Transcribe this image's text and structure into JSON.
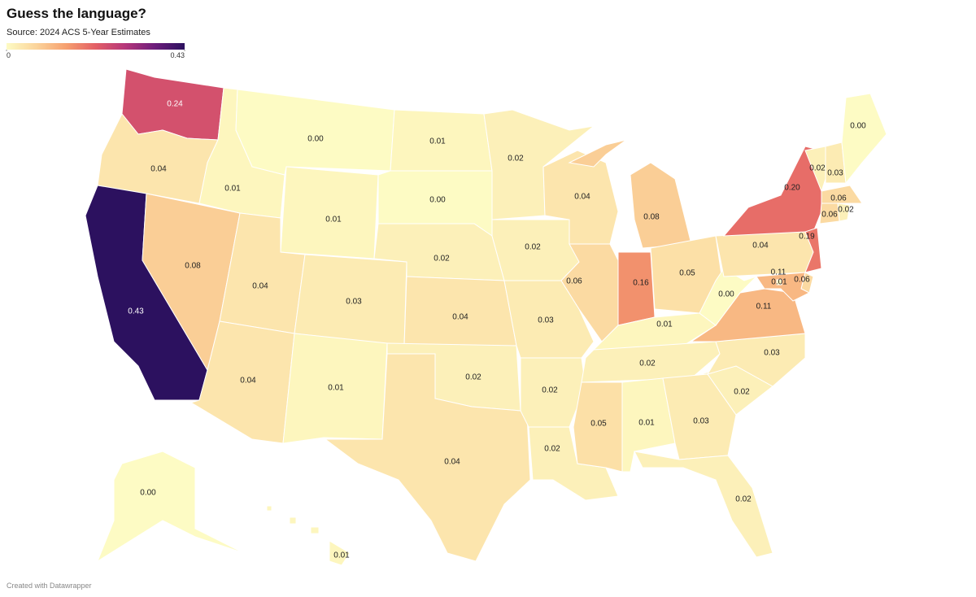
{
  "chart_data": {
    "type": "choropleth",
    "title": "Guess the language?",
    "subtitle": "Source: 2024 ACS 5-Year Estimates",
    "credit": "Created with Datawrapper",
    "values": [
      0.24,
      0.04,
      0.43,
      0.08,
      0.01,
      0.0,
      0.01,
      0.04,
      0.04,
      0.03,
      0.01,
      0.01,
      0.0,
      0.02,
      0.04,
      0.02,
      0.04,
      0.02,
      0.02,
      0.03,
      0.02,
      0.02,
      0.04,
      0.06,
      0.08,
      0.16,
      0.05,
      0.01,
      0.02,
      0.05,
      0.01,
      0.03,
      0.02,
      0.02,
      0.03,
      0.11,
      0.0,
      0.04,
      0.2,
      0.02,
      0.03,
      0.0,
      0.06,
      0.02,
      0.06,
      0.19,
      0.06,
      0.11,
      0.01,
      0.0,
      0.01
    ],
    "value_labels": [
      "0.24",
      "0.04",
      "0.43",
      "0.08",
      "0.01",
      "0.00",
      "0.01",
      "0.04",
      "0.04",
      "0.03",
      "0.01",
      "0.01",
      "0.00",
      "0.02",
      "0.04",
      "0.02",
      "0.04",
      "0.02",
      "0.02",
      "0.03",
      "0.02",
      "0.02",
      "0.04",
      "0.06",
      "0.08",
      "0.16",
      "0.05",
      "0.01",
      "0.02",
      "0.05",
      "0.01",
      "0.03",
      "0.02",
      "0.02",
      "0.03",
      "0.11",
      "0.00",
      "0.04",
      "0.20",
      "0.02",
      "0.03",
      "0.00",
      "0.06",
      "0.02",
      "0.06",
      "0.19",
      "0.06",
      "0.11",
      "0.01",
      "0.00",
      "0.01"
    ],
    "colors": [
      "#fdfbc4",
      "#fbd49b",
      "#f6a06f",
      "#e35f66",
      "#b5367a",
      "#6c1d7b",
      "#2c115f"
    ],
    "colorlim": [
      0,
      0.43
    ],
    "colorticks": [
      0,
      0.43
    ]
  }
}
